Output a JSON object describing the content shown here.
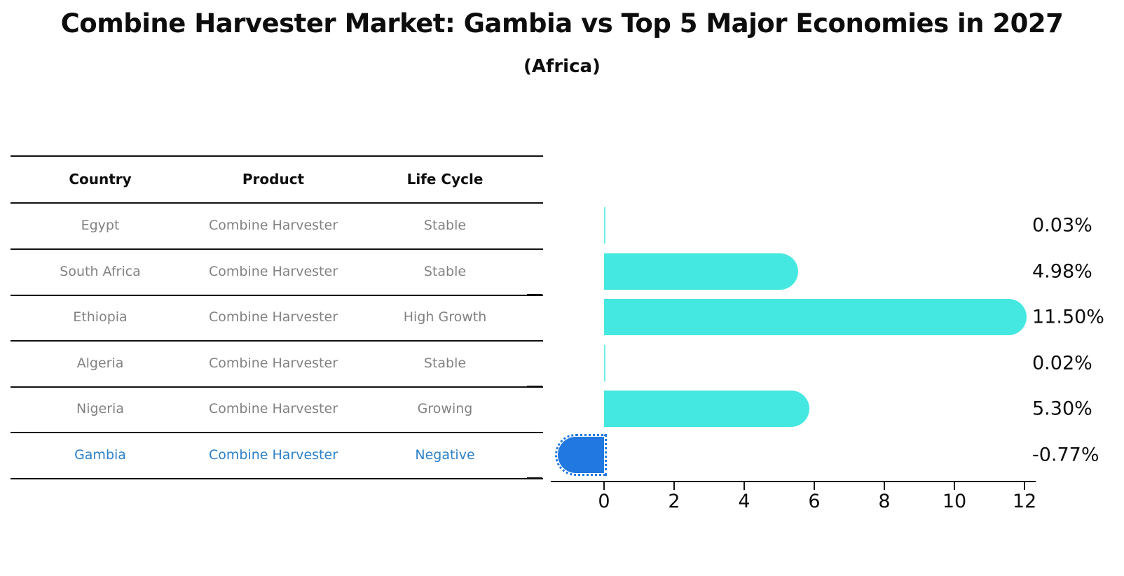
{
  "title": "Combine Harvester Market: Gambia vs Top 5 Major Economies in 2027",
  "subtitle": "(Africa)",
  "table": {
    "headers": [
      "Country",
      "Product",
      "Life Cycle"
    ],
    "rows": [
      {
        "country": "Egypt",
        "product": "Combine Harvester",
        "life_cycle": "Stable",
        "highlight": false
      },
      {
        "country": "South Africa",
        "product": "Combine Harvester",
        "life_cycle": "Stable",
        "highlight": false
      },
      {
        "country": "Ethiopia",
        "product": "Combine Harvester",
        "life_cycle": "High Growth",
        "highlight": false
      },
      {
        "country": "Algeria",
        "product": "Combine Harvester",
        "life_cycle": "Stable",
        "highlight": false
      },
      {
        "country": "Nigeria",
        "product": "Combine Harvester",
        "life_cycle": "Growing",
        "highlight": false
      },
      {
        "country": "Gambia",
        "product": "Combine Harvester",
        "life_cycle": "Negative",
        "highlight": true
      }
    ]
  },
  "chart_data": {
    "type": "bar",
    "orientation": "horizontal",
    "title": "Combine Harvester Market: Gambia vs Top 5 Major Economies in 2027 (Africa)",
    "categories": [
      "Egypt",
      "South Africa",
      "Ethiopia",
      "Algeria",
      "Nigeria",
      "Gambia"
    ],
    "values": [
      0.03,
      4.98,
      11.5,
      0.02,
      5.3,
      -0.77
    ],
    "value_labels": [
      "0.03%",
      "4.98%",
      "11.50%",
      "0.02%",
      "5.30%",
      "-0.77%"
    ],
    "x_ticks": [
      0,
      2,
      4,
      6,
      8,
      10,
      12
    ],
    "xlim": [
      -1.55,
      12.35
    ],
    "grid": false,
    "legend": false,
    "highlight_index": 5,
    "highlight_edge_style": "dotted"
  },
  "colors": {
    "bar": "#45e8e0",
    "highlight_bar": "#2178e0",
    "highlight_text": "#2e80c8",
    "row_text": "#828282",
    "heading_text": "#0d0d0d",
    "line": "#111111"
  }
}
